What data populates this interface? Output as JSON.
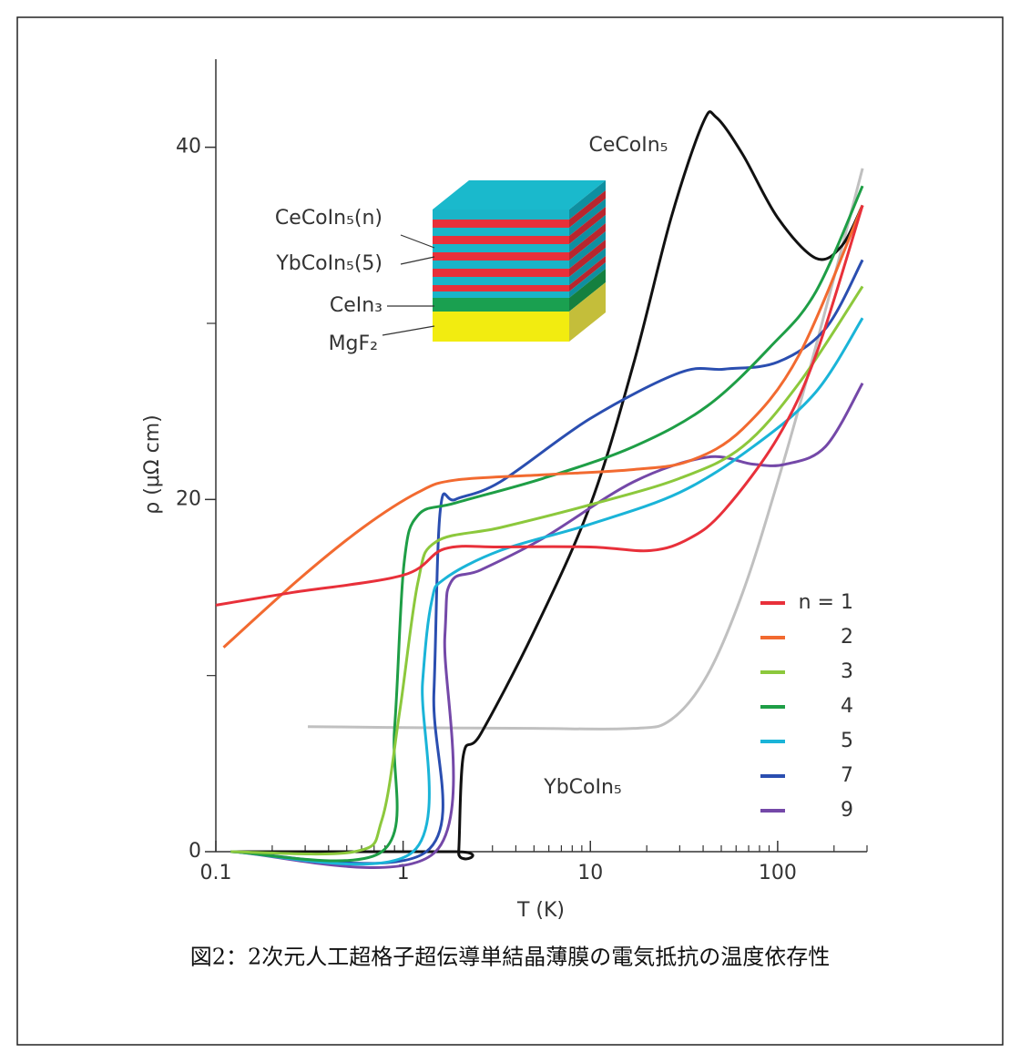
{
  "chart_data": {
    "type": "line",
    "xlabel": "T (K)",
    "ylabel": "ρ (μΩ cm)",
    "xscale": "log",
    "xlim": [
      0.1,
      300
    ],
    "ylim": [
      0,
      45
    ],
    "xticks": [
      0.1,
      1,
      10,
      100
    ],
    "x_minor_ticks": [
      0.2,
      0.3,
      0.4,
      0.5,
      0.6,
      0.7,
      0.8,
      0.9,
      2,
      3,
      4,
      5,
      6,
      7,
      8,
      9,
      20,
      30,
      40,
      50,
      60,
      70,
      80,
      90,
      200,
      300
    ],
    "yticks": [
      0,
      20,
      40
    ],
    "y_minor_ticks": [
      10,
      30
    ],
    "legend": "lower right",
    "series": [
      {
        "name": "n = 1",
        "color": "#e8303a",
        "x": [
          0.1,
          0.25,
          1,
          1.67,
          3.3,
          10,
          21,
          34,
          52,
          100,
          160,
          284
        ],
        "values": [
          14.0,
          14.7,
          15.7,
          17.2,
          17.3,
          17.3,
          17.1,
          17.8,
          19.4,
          23.5,
          28.2,
          36.7
        ]
      },
      {
        "name": "2",
        "color": "#f26a30",
        "x": [
          0.11,
          0.28,
          0.61,
          1.2,
          1.9,
          5.6,
          17,
          34,
          65,
          130,
          284
        ],
        "values": [
          11.6,
          15.5,
          18.4,
          20.4,
          21.1,
          21.4,
          21.7,
          22.2,
          24.0,
          28.2,
          36.7
        ]
      },
      {
        "name": "3",
        "color": "#8cc83c",
        "x": [
          0.12,
          0.55,
          0.77,
          0.96,
          1.2,
          1.5,
          3.3,
          10,
          30,
          65,
          130,
          284
        ],
        "values": [
          0,
          0,
          1.8,
          8.0,
          15.3,
          17.6,
          18.4,
          19.7,
          21.2,
          23.0,
          26.6,
          32.1
        ]
      },
      {
        "name": "4",
        "color": "#1e9e46",
        "x": [
          0.12,
          0.77,
          0.9,
          1.01,
          1.2,
          1.9,
          5.6,
          17,
          42,
          92,
          160,
          284
        ],
        "values": [
          0,
          0,
          7.0,
          16.3,
          19.1,
          19.8,
          21.2,
          23.0,
          25.3,
          28.7,
          31.8,
          37.8
        ]
      },
      {
        "name": "5",
        "color": "#1ab4d8",
        "x": [
          0.12,
          1.13,
          1.27,
          1.42,
          1.67,
          3.3,
          10,
          30,
          74,
          160,
          284
        ],
        "values": [
          0,
          0,
          9.6,
          14.2,
          15.5,
          17.1,
          18.6,
          20.4,
          23.0,
          26.1,
          30.3
        ]
      },
      {
        "name": "7",
        "color": "#2a4eb0",
        "x": [
          0.12,
          1.33,
          1.46,
          1.58,
          1.9,
          3.3,
          10,
          30,
          52,
          100,
          180,
          284
        ],
        "values": [
          0,
          0,
          9.0,
          19.4,
          20.0,
          21.0,
          24.6,
          27.2,
          27.4,
          27.8,
          29.7,
          33.6
        ]
      },
      {
        "name": "9",
        "color": "#7448a8",
        "x": [
          0.12,
          1.49,
          1.67,
          1.8,
          2.6,
          5.6,
          17,
          42,
          74,
          110,
          180,
          284
        ],
        "values": [
          0,
          0,
          12.2,
          15.3,
          16.0,
          17.8,
          21.0,
          22.4,
          22.0,
          22.0,
          23.0,
          26.6
        ]
      },
      {
        "name": "CeCoIn₅",
        "color": "#111111",
        "in_legend": false,
        "x": [
          0.12,
          1.9,
          1.98,
          2.1,
          2.6,
          5,
          10,
          17,
          27,
          40,
          47,
          65,
          100,
          160,
          220,
          284
        ],
        "values": [
          0,
          0,
          0,
          5.5,
          6.7,
          12.5,
          19.7,
          27.7,
          36.0,
          41.4,
          41.7,
          39.6,
          36.0,
          33.7,
          34.4,
          36.7
        ]
      },
      {
        "name": "YbCoIn₅",
        "color": "#c0c0c0",
        "in_legend": false,
        "x": [
          0.31,
          1,
          5,
          17,
          27,
          42,
          65,
          100,
          160,
          284
        ],
        "values": [
          7.1,
          7.05,
          7.0,
          7.0,
          7.5,
          10.0,
          14.7,
          21.0,
          28.7,
          38.8
        ]
      }
    ],
    "inset_labels": [
      "CeCoIn₅(n)",
      "YbCoIn₅(5)",
      "CeIn₃",
      "MgF₂"
    ]
  },
  "caption": "図2：2次元人工超格子超伝導単結晶薄膜の電気抵抗の温度依存性"
}
